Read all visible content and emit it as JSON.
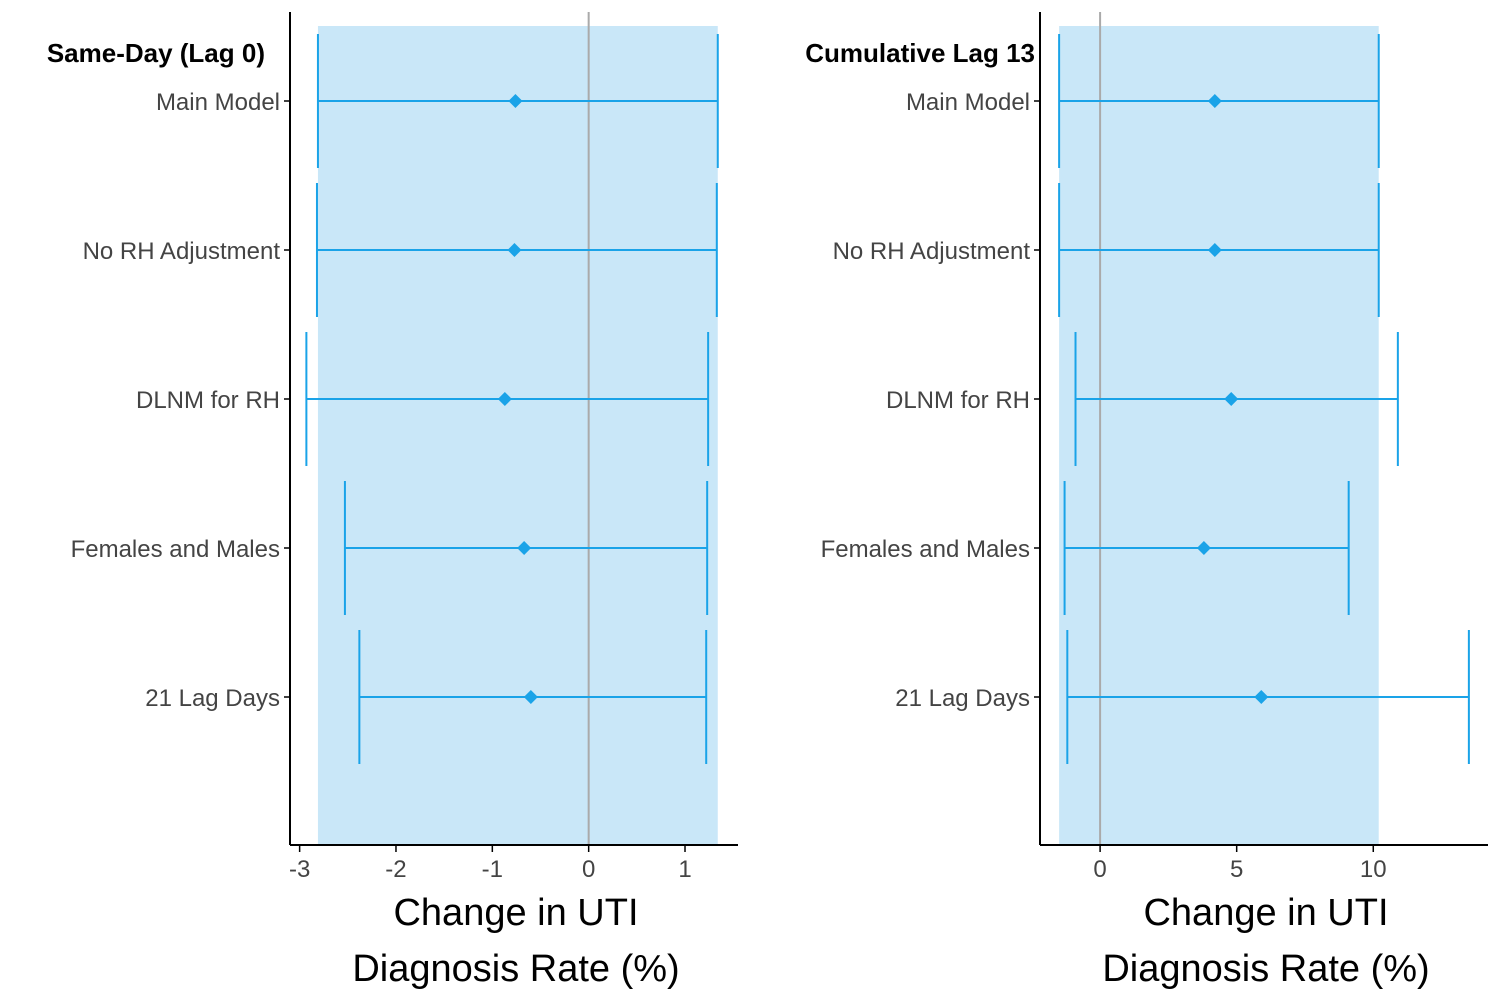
{
  "colors": {
    "band": "#c9e7f8",
    "interval": "#1aa3e8",
    "reference_line": "#aaaaaa",
    "axis": "#000000",
    "tick_text": "#444444"
  },
  "chart_data": [
    {
      "type": "forest",
      "title": "Same-Day (Lag 0)",
      "xlabel": [
        "Change in UTI",
        "Diagnosis Rate (%)"
      ],
      "categories": [
        "Main Model",
        "No RH Adjustment",
        "DLNM for RH",
        "Females and Males",
        "21 Lag Days"
      ],
      "estimates": [
        -0.76,
        -0.77,
        -0.87,
        -0.67,
        -0.6
      ],
      "lower": [
        -2.81,
        -2.82,
        -2.93,
        -2.53,
        -2.38
      ],
      "upper": [
        1.34,
        1.33,
        1.24,
        1.23,
        1.22
      ],
      "band": [
        -2.81,
        1.34
      ],
      "xlim": [
        -3.1,
        1.55
      ],
      "xticks": [
        -3,
        -2,
        -1,
        0,
        1
      ],
      "xtick_labels": [
        "-3",
        "-2",
        "-1",
        "0",
        "1"
      ],
      "reference_x": 0,
      "grid": false,
      "legend": "none"
    },
    {
      "type": "forest",
      "title": "Cumulative Lag 13",
      "xlabel": [
        "Change in UTI",
        "Diagnosis Rate (%)"
      ],
      "categories": [
        "Main Model",
        "No RH Adjustment",
        "DLNM for RH",
        "Females and Males",
        "21 Lag Days"
      ],
      "estimates": [
        4.2,
        4.2,
        4.8,
        3.8,
        5.9
      ],
      "lower": [
        -1.5,
        -1.5,
        -0.9,
        -1.3,
        -1.2
      ],
      "upper": [
        10.2,
        10.2,
        10.9,
        9.1,
        13.5
      ],
      "band": [
        -1.5,
        10.2
      ],
      "xlim": [
        -2.2,
        14.2
      ],
      "xticks": [
        0,
        5,
        10
      ],
      "xtick_labels": [
        "0",
        "5",
        "10"
      ],
      "reference_x": 0,
      "grid": false,
      "legend": "none"
    }
  ]
}
